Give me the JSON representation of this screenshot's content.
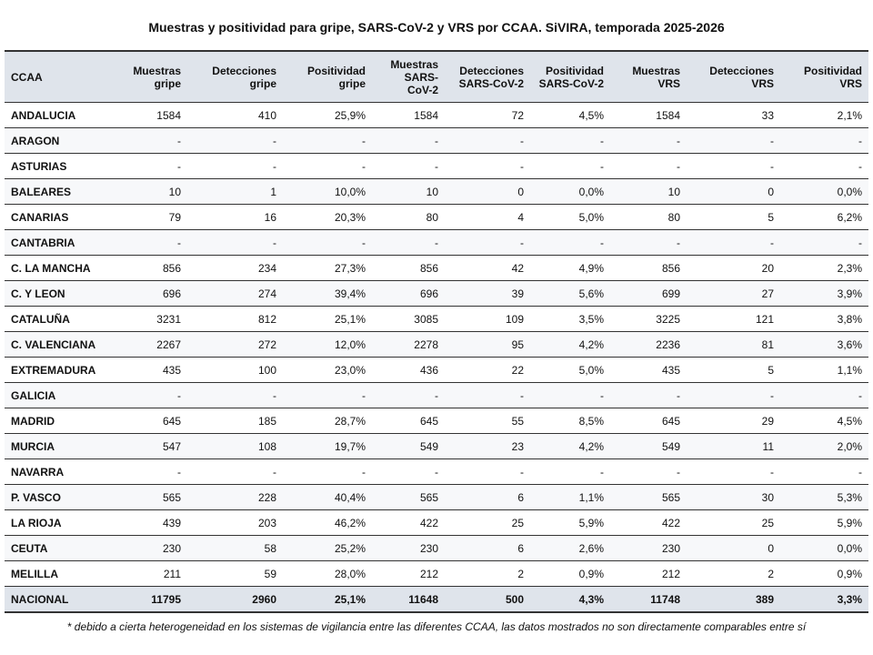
{
  "title": "Muestras y positividad para gripe, SARS-CoV-2 y VRS por CCAA. SiVIRA, temporada 2025-2026",
  "table": {
    "headers": [
      "CCAA",
      "Muestras\ngripe",
      "Detecciones\ngripe",
      "Positividad\ngripe",
      "Muestras\nSARS-\nCoV-2",
      "Detecciones\nSARS-CoV-2",
      "Positividad\nSARS-CoV-2",
      "Muestras\nVRS",
      "Detecciones\nVRS",
      "Positividad\nVRS"
    ],
    "rows": [
      [
        "ANDALUCIA",
        "1584",
        "410",
        "25,9%",
        "1584",
        "72",
        "4,5%",
        "1584",
        "33",
        "2,1%"
      ],
      [
        "ARAGON",
        "-",
        "-",
        "-",
        "-",
        "-",
        "-",
        "-",
        "-",
        "-"
      ],
      [
        "ASTURIAS",
        "-",
        "-",
        "-",
        "-",
        "-",
        "-",
        "-",
        "-",
        "-"
      ],
      [
        "BALEARES",
        "10",
        "1",
        "10,0%",
        "10",
        "0",
        "0,0%",
        "10",
        "0",
        "0,0%"
      ],
      [
        "CANARIAS",
        "79",
        "16",
        "20,3%",
        "80",
        "4",
        "5,0%",
        "80",
        "5",
        "6,2%"
      ],
      [
        "CANTABRIA",
        "-",
        "-",
        "-",
        "-",
        "-",
        "-",
        "-",
        "-",
        "-"
      ],
      [
        "C. LA MANCHA",
        "856",
        "234",
        "27,3%",
        "856",
        "42",
        "4,9%",
        "856",
        "20",
        "2,3%"
      ],
      [
        "C. Y LEON",
        "696",
        "274",
        "39,4%",
        "696",
        "39",
        "5,6%",
        "699",
        "27",
        "3,9%"
      ],
      [
        "CATALUÑA",
        "3231",
        "812",
        "25,1%",
        "3085",
        "109",
        "3,5%",
        "3225",
        "121",
        "3,8%"
      ],
      [
        "C. VALENCIANA",
        "2267",
        "272",
        "12,0%",
        "2278",
        "95",
        "4,2%",
        "2236",
        "81",
        "3,6%"
      ],
      [
        "EXTREMADURA",
        "435",
        "100",
        "23,0%",
        "436",
        "22",
        "5,0%",
        "435",
        "5",
        "1,1%"
      ],
      [
        "GALICIA",
        "-",
        "-",
        "-",
        "-",
        "-",
        "-",
        "-",
        "-",
        "-"
      ],
      [
        "MADRID",
        "645",
        "185",
        "28,7%",
        "645",
        "55",
        "8,5%",
        "645",
        "29",
        "4,5%"
      ],
      [
        "MURCIA",
        "547",
        "108",
        "19,7%",
        "549",
        "23",
        "4,2%",
        "549",
        "11",
        "2,0%"
      ],
      [
        "NAVARRA",
        "-",
        "-",
        "-",
        "-",
        "-",
        "-",
        "-",
        "-",
        "-"
      ],
      [
        "P. VASCO",
        "565",
        "228",
        "40,4%",
        "565",
        "6",
        "1,1%",
        "565",
        "30",
        "5,3%"
      ],
      [
        "LA RIOJA",
        "439",
        "203",
        "46,2%",
        "422",
        "25",
        "5,9%",
        "422",
        "25",
        "5,9%"
      ],
      [
        "CEUTA",
        "230",
        "58",
        "25,2%",
        "230",
        "6",
        "2,6%",
        "230",
        "0",
        "0,0%"
      ],
      [
        "MELILLA",
        "211",
        "59",
        "28,0%",
        "212",
        "2",
        "0,9%",
        "212",
        "2",
        "0,9%"
      ],
      [
        "NACIONAL",
        "11795",
        "2960",
        "25,1%",
        "11648",
        "500",
        "4,3%",
        "11748",
        "389",
        "3,3%"
      ]
    ]
  },
  "footnote": "* debido a cierta heterogeneidad en los sistemas de vigilancia entre las diferentes CCAA, las datos mostrados no son directamente comparables entre sí"
}
